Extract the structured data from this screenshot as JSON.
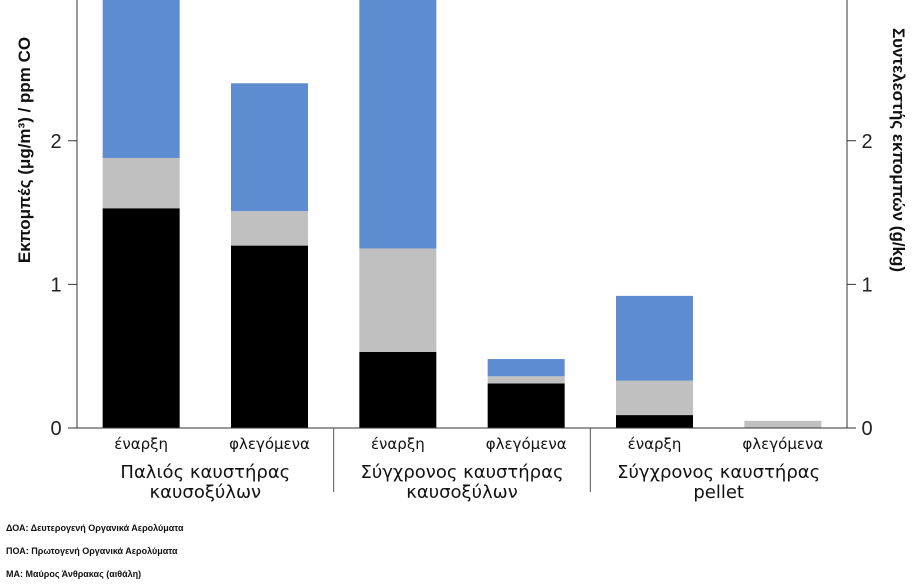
{
  "chart_data": {
    "type": "bar",
    "stacked": true,
    "categories": [
      "έναρξη",
      "φλεγόμενα",
      "έναρξη",
      "φλεγόμενα",
      "έναρξη",
      "φλεγόμενα"
    ],
    "groups": [
      {
        "label_lines": [
          "Παλιός καυστήρας",
          "καυσοξύλων"
        ]
      },
      {
        "label_lines": [
          "Σύγχρονος καυστήρας",
          "καυσοξύλων"
        ]
      },
      {
        "label_lines": [
          "Σύγχρονος καυστήρας",
          "pellet"
        ]
      }
    ],
    "series": [
      {
        "name": "ΜΑ",
        "color": "#000000",
        "values": [
          1.53,
          1.27,
          0.53,
          0.31,
          0.09,
          0.0
        ]
      },
      {
        "name": "ΠΟΑ",
        "color": "#c0c0c0",
        "values": [
          0.35,
          0.24,
          0.72,
          0.05,
          0.24,
          0.05
        ]
      },
      {
        "name": "ΔΟΑ",
        "color": "#5e8cd0",
        "values": [
          1.12,
          0.89,
          1.75,
          0.12,
          0.59,
          0.0
        ]
      }
    ],
    "ylabel_left": "Εκπομπές (μg/m³) / ppm CO",
    "ylabel_right": "Συντελεστής εκπομπών (g/kg)",
    "yticks": [
      0,
      1,
      2
    ],
    "ylim": [
      0,
      2.98
    ]
  },
  "legend_lines": [
    "ΔΟΑ: Δευτερογενή Οργανικά Αερολύματα",
    "ΠΟΑ: Πρωτογενή Οργανικά Αερολύματα",
    "ΜΑ: Μαύρος Άνθρακας (αιθάλη)"
  ]
}
